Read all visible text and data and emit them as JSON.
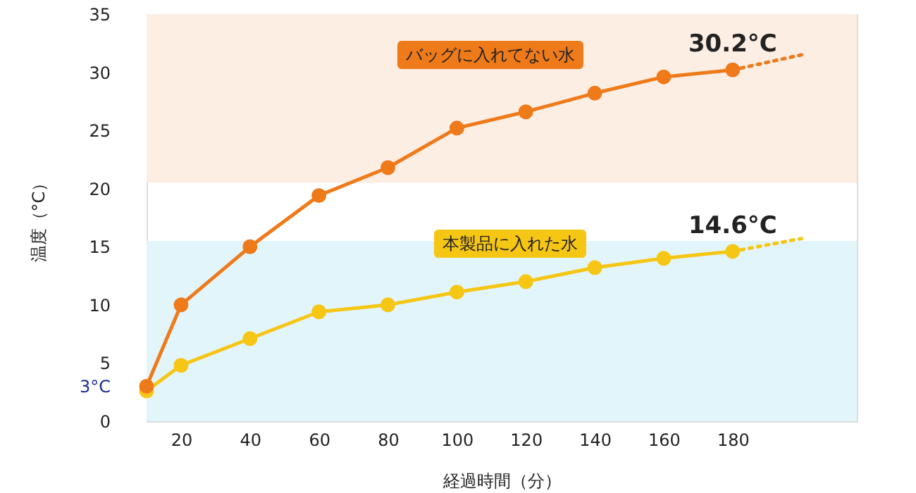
{
  "chart_data": {
    "type": "line",
    "xlabel": "経過時間（分）",
    "ylabel": "温度（°C）",
    "x": [
      10,
      20,
      40,
      60,
      80,
      100,
      120,
      140,
      160,
      180,
      200
    ],
    "xlim": [
      10,
      216
    ],
    "xticks": [
      20,
      40,
      60,
      80,
      100,
      120,
      140,
      160,
      180
    ],
    "ylim": [
      0,
      35
    ],
    "yticks": [
      0,
      {
        "value": 3,
        "label": "3°C"
      },
      5,
      10,
      15,
      20,
      25,
      30,
      35
    ],
    "grid": false,
    "marker": "circle",
    "line_style": "solid",
    "bands": [
      {
        "axis": "y",
        "from": 20.5,
        "to": 35,
        "color": "#fdeee4"
      },
      {
        "axis": "y",
        "from": 0,
        "to": 15.5,
        "color": "#e2f5fb"
      }
    ],
    "series": [
      {
        "name": "バッグに入れてない水",
        "color": "#ef7a1a",
        "values": [
          3.0,
          10.0,
          15.0,
          19.4,
          21.8,
          25.2,
          26.6,
          28.2,
          29.6,
          30.2,
          null
        ],
        "value_labels": [
          null,
          null,
          null,
          null,
          null,
          null,
          null,
          null,
          null,
          "30.2°C",
          null
        ]
      },
      {
        "name": "本製品に入れた水",
        "color": "#f6c615",
        "values": [
          2.6,
          4.8,
          7.1,
          9.4,
          10.0,
          11.1,
          12.0,
          13.2,
          14.0,
          14.6,
          null
        ],
        "value_labels": [
          null,
          null,
          null,
          null,
          null,
          null,
          null,
          null,
          null,
          "14.6°C",
          null
        ]
      },
      {
        "type": "line",
        "color": "#ef7a1a",
        "line_style": "dotted",
        "marker": "none",
        "values": [
          null,
          null,
          null,
          null,
          null,
          null,
          null,
          null,
          null,
          30.2,
          31.5
        ]
      },
      {
        "type": "line",
        "color": "#f6c615",
        "line_style": "dotted",
        "marker": "none",
        "values": [
          null,
          null,
          null,
          null,
          null,
          null,
          null,
          null,
          null,
          14.6,
          15.7
        ]
      }
    ]
  }
}
